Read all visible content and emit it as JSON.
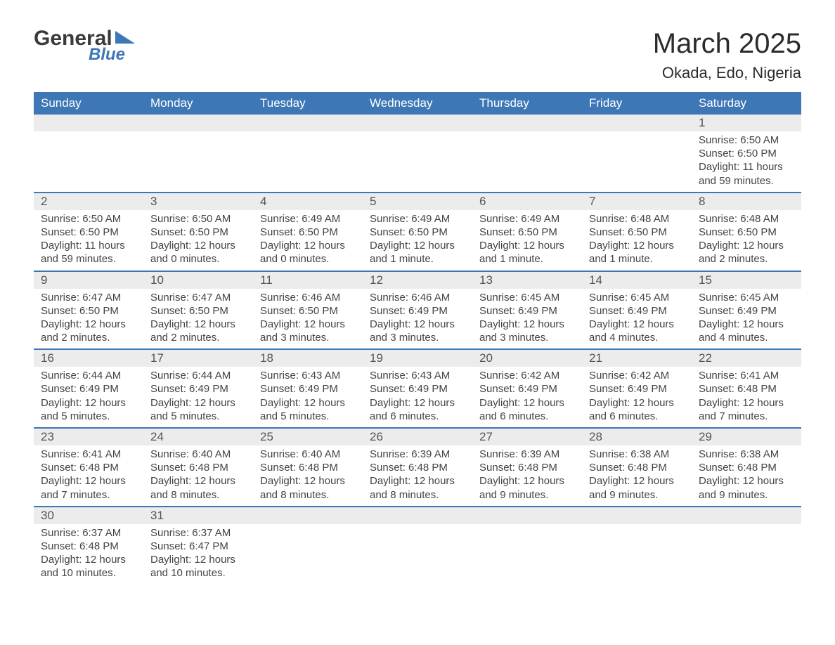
{
  "brand": {
    "line1": "General",
    "line2": "Blue",
    "accent": "#3d77b6"
  },
  "title": "March 2025",
  "location": "Okada, Edo, Nigeria",
  "weekdays": [
    "Sunday",
    "Monday",
    "Tuesday",
    "Wednesday",
    "Thursday",
    "Friday",
    "Saturday"
  ],
  "styling": {
    "header_bg": "#3d77b6",
    "header_fg": "#ffffff",
    "daynum_bg": "#ececec",
    "row_divider": "#3d77b6",
    "body_fg": "#444444",
    "title_fontsize": 40,
    "sub_fontsize": 22,
    "th_fontsize": 17,
    "cell_fontsize": 15
  },
  "weeks": [
    [
      null,
      null,
      null,
      null,
      null,
      null,
      {
        "n": "1",
        "sunrise": "Sunrise: 6:50 AM",
        "sunset": "Sunset: 6:50 PM",
        "daylight": "Daylight: 11 hours and 59 minutes."
      }
    ],
    [
      {
        "n": "2",
        "sunrise": "Sunrise: 6:50 AM",
        "sunset": "Sunset: 6:50 PM",
        "daylight": "Daylight: 11 hours and 59 minutes."
      },
      {
        "n": "3",
        "sunrise": "Sunrise: 6:50 AM",
        "sunset": "Sunset: 6:50 PM",
        "daylight": "Daylight: 12 hours and 0 minutes."
      },
      {
        "n": "4",
        "sunrise": "Sunrise: 6:49 AM",
        "sunset": "Sunset: 6:50 PM",
        "daylight": "Daylight: 12 hours and 0 minutes."
      },
      {
        "n": "5",
        "sunrise": "Sunrise: 6:49 AM",
        "sunset": "Sunset: 6:50 PM",
        "daylight": "Daylight: 12 hours and 1 minute."
      },
      {
        "n": "6",
        "sunrise": "Sunrise: 6:49 AM",
        "sunset": "Sunset: 6:50 PM",
        "daylight": "Daylight: 12 hours and 1 minute."
      },
      {
        "n": "7",
        "sunrise": "Sunrise: 6:48 AM",
        "sunset": "Sunset: 6:50 PM",
        "daylight": "Daylight: 12 hours and 1 minute."
      },
      {
        "n": "8",
        "sunrise": "Sunrise: 6:48 AM",
        "sunset": "Sunset: 6:50 PM",
        "daylight": "Daylight: 12 hours and 2 minutes."
      }
    ],
    [
      {
        "n": "9",
        "sunrise": "Sunrise: 6:47 AM",
        "sunset": "Sunset: 6:50 PM",
        "daylight": "Daylight: 12 hours and 2 minutes."
      },
      {
        "n": "10",
        "sunrise": "Sunrise: 6:47 AM",
        "sunset": "Sunset: 6:50 PM",
        "daylight": "Daylight: 12 hours and 2 minutes."
      },
      {
        "n": "11",
        "sunrise": "Sunrise: 6:46 AM",
        "sunset": "Sunset: 6:50 PM",
        "daylight": "Daylight: 12 hours and 3 minutes."
      },
      {
        "n": "12",
        "sunrise": "Sunrise: 6:46 AM",
        "sunset": "Sunset: 6:49 PM",
        "daylight": "Daylight: 12 hours and 3 minutes."
      },
      {
        "n": "13",
        "sunrise": "Sunrise: 6:45 AM",
        "sunset": "Sunset: 6:49 PM",
        "daylight": "Daylight: 12 hours and 3 minutes."
      },
      {
        "n": "14",
        "sunrise": "Sunrise: 6:45 AM",
        "sunset": "Sunset: 6:49 PM",
        "daylight": "Daylight: 12 hours and 4 minutes."
      },
      {
        "n": "15",
        "sunrise": "Sunrise: 6:45 AM",
        "sunset": "Sunset: 6:49 PM",
        "daylight": "Daylight: 12 hours and 4 minutes."
      }
    ],
    [
      {
        "n": "16",
        "sunrise": "Sunrise: 6:44 AM",
        "sunset": "Sunset: 6:49 PM",
        "daylight": "Daylight: 12 hours and 5 minutes."
      },
      {
        "n": "17",
        "sunrise": "Sunrise: 6:44 AM",
        "sunset": "Sunset: 6:49 PM",
        "daylight": "Daylight: 12 hours and 5 minutes."
      },
      {
        "n": "18",
        "sunrise": "Sunrise: 6:43 AM",
        "sunset": "Sunset: 6:49 PM",
        "daylight": "Daylight: 12 hours and 5 minutes."
      },
      {
        "n": "19",
        "sunrise": "Sunrise: 6:43 AM",
        "sunset": "Sunset: 6:49 PM",
        "daylight": "Daylight: 12 hours and 6 minutes."
      },
      {
        "n": "20",
        "sunrise": "Sunrise: 6:42 AM",
        "sunset": "Sunset: 6:49 PM",
        "daylight": "Daylight: 12 hours and 6 minutes."
      },
      {
        "n": "21",
        "sunrise": "Sunrise: 6:42 AM",
        "sunset": "Sunset: 6:49 PM",
        "daylight": "Daylight: 12 hours and 6 minutes."
      },
      {
        "n": "22",
        "sunrise": "Sunrise: 6:41 AM",
        "sunset": "Sunset: 6:48 PM",
        "daylight": "Daylight: 12 hours and 7 minutes."
      }
    ],
    [
      {
        "n": "23",
        "sunrise": "Sunrise: 6:41 AM",
        "sunset": "Sunset: 6:48 PM",
        "daylight": "Daylight: 12 hours and 7 minutes."
      },
      {
        "n": "24",
        "sunrise": "Sunrise: 6:40 AM",
        "sunset": "Sunset: 6:48 PM",
        "daylight": "Daylight: 12 hours and 8 minutes."
      },
      {
        "n": "25",
        "sunrise": "Sunrise: 6:40 AM",
        "sunset": "Sunset: 6:48 PM",
        "daylight": "Daylight: 12 hours and 8 minutes."
      },
      {
        "n": "26",
        "sunrise": "Sunrise: 6:39 AM",
        "sunset": "Sunset: 6:48 PM",
        "daylight": "Daylight: 12 hours and 8 minutes."
      },
      {
        "n": "27",
        "sunrise": "Sunrise: 6:39 AM",
        "sunset": "Sunset: 6:48 PM",
        "daylight": "Daylight: 12 hours and 9 minutes."
      },
      {
        "n": "28",
        "sunrise": "Sunrise: 6:38 AM",
        "sunset": "Sunset: 6:48 PM",
        "daylight": "Daylight: 12 hours and 9 minutes."
      },
      {
        "n": "29",
        "sunrise": "Sunrise: 6:38 AM",
        "sunset": "Sunset: 6:48 PM",
        "daylight": "Daylight: 12 hours and 9 minutes."
      }
    ],
    [
      {
        "n": "30",
        "sunrise": "Sunrise: 6:37 AM",
        "sunset": "Sunset: 6:48 PM",
        "daylight": "Daylight: 12 hours and 10 minutes."
      },
      {
        "n": "31",
        "sunrise": "Sunrise: 6:37 AM",
        "sunset": "Sunset: 6:47 PM",
        "daylight": "Daylight: 12 hours and 10 minutes."
      },
      null,
      null,
      null,
      null,
      null
    ]
  ]
}
